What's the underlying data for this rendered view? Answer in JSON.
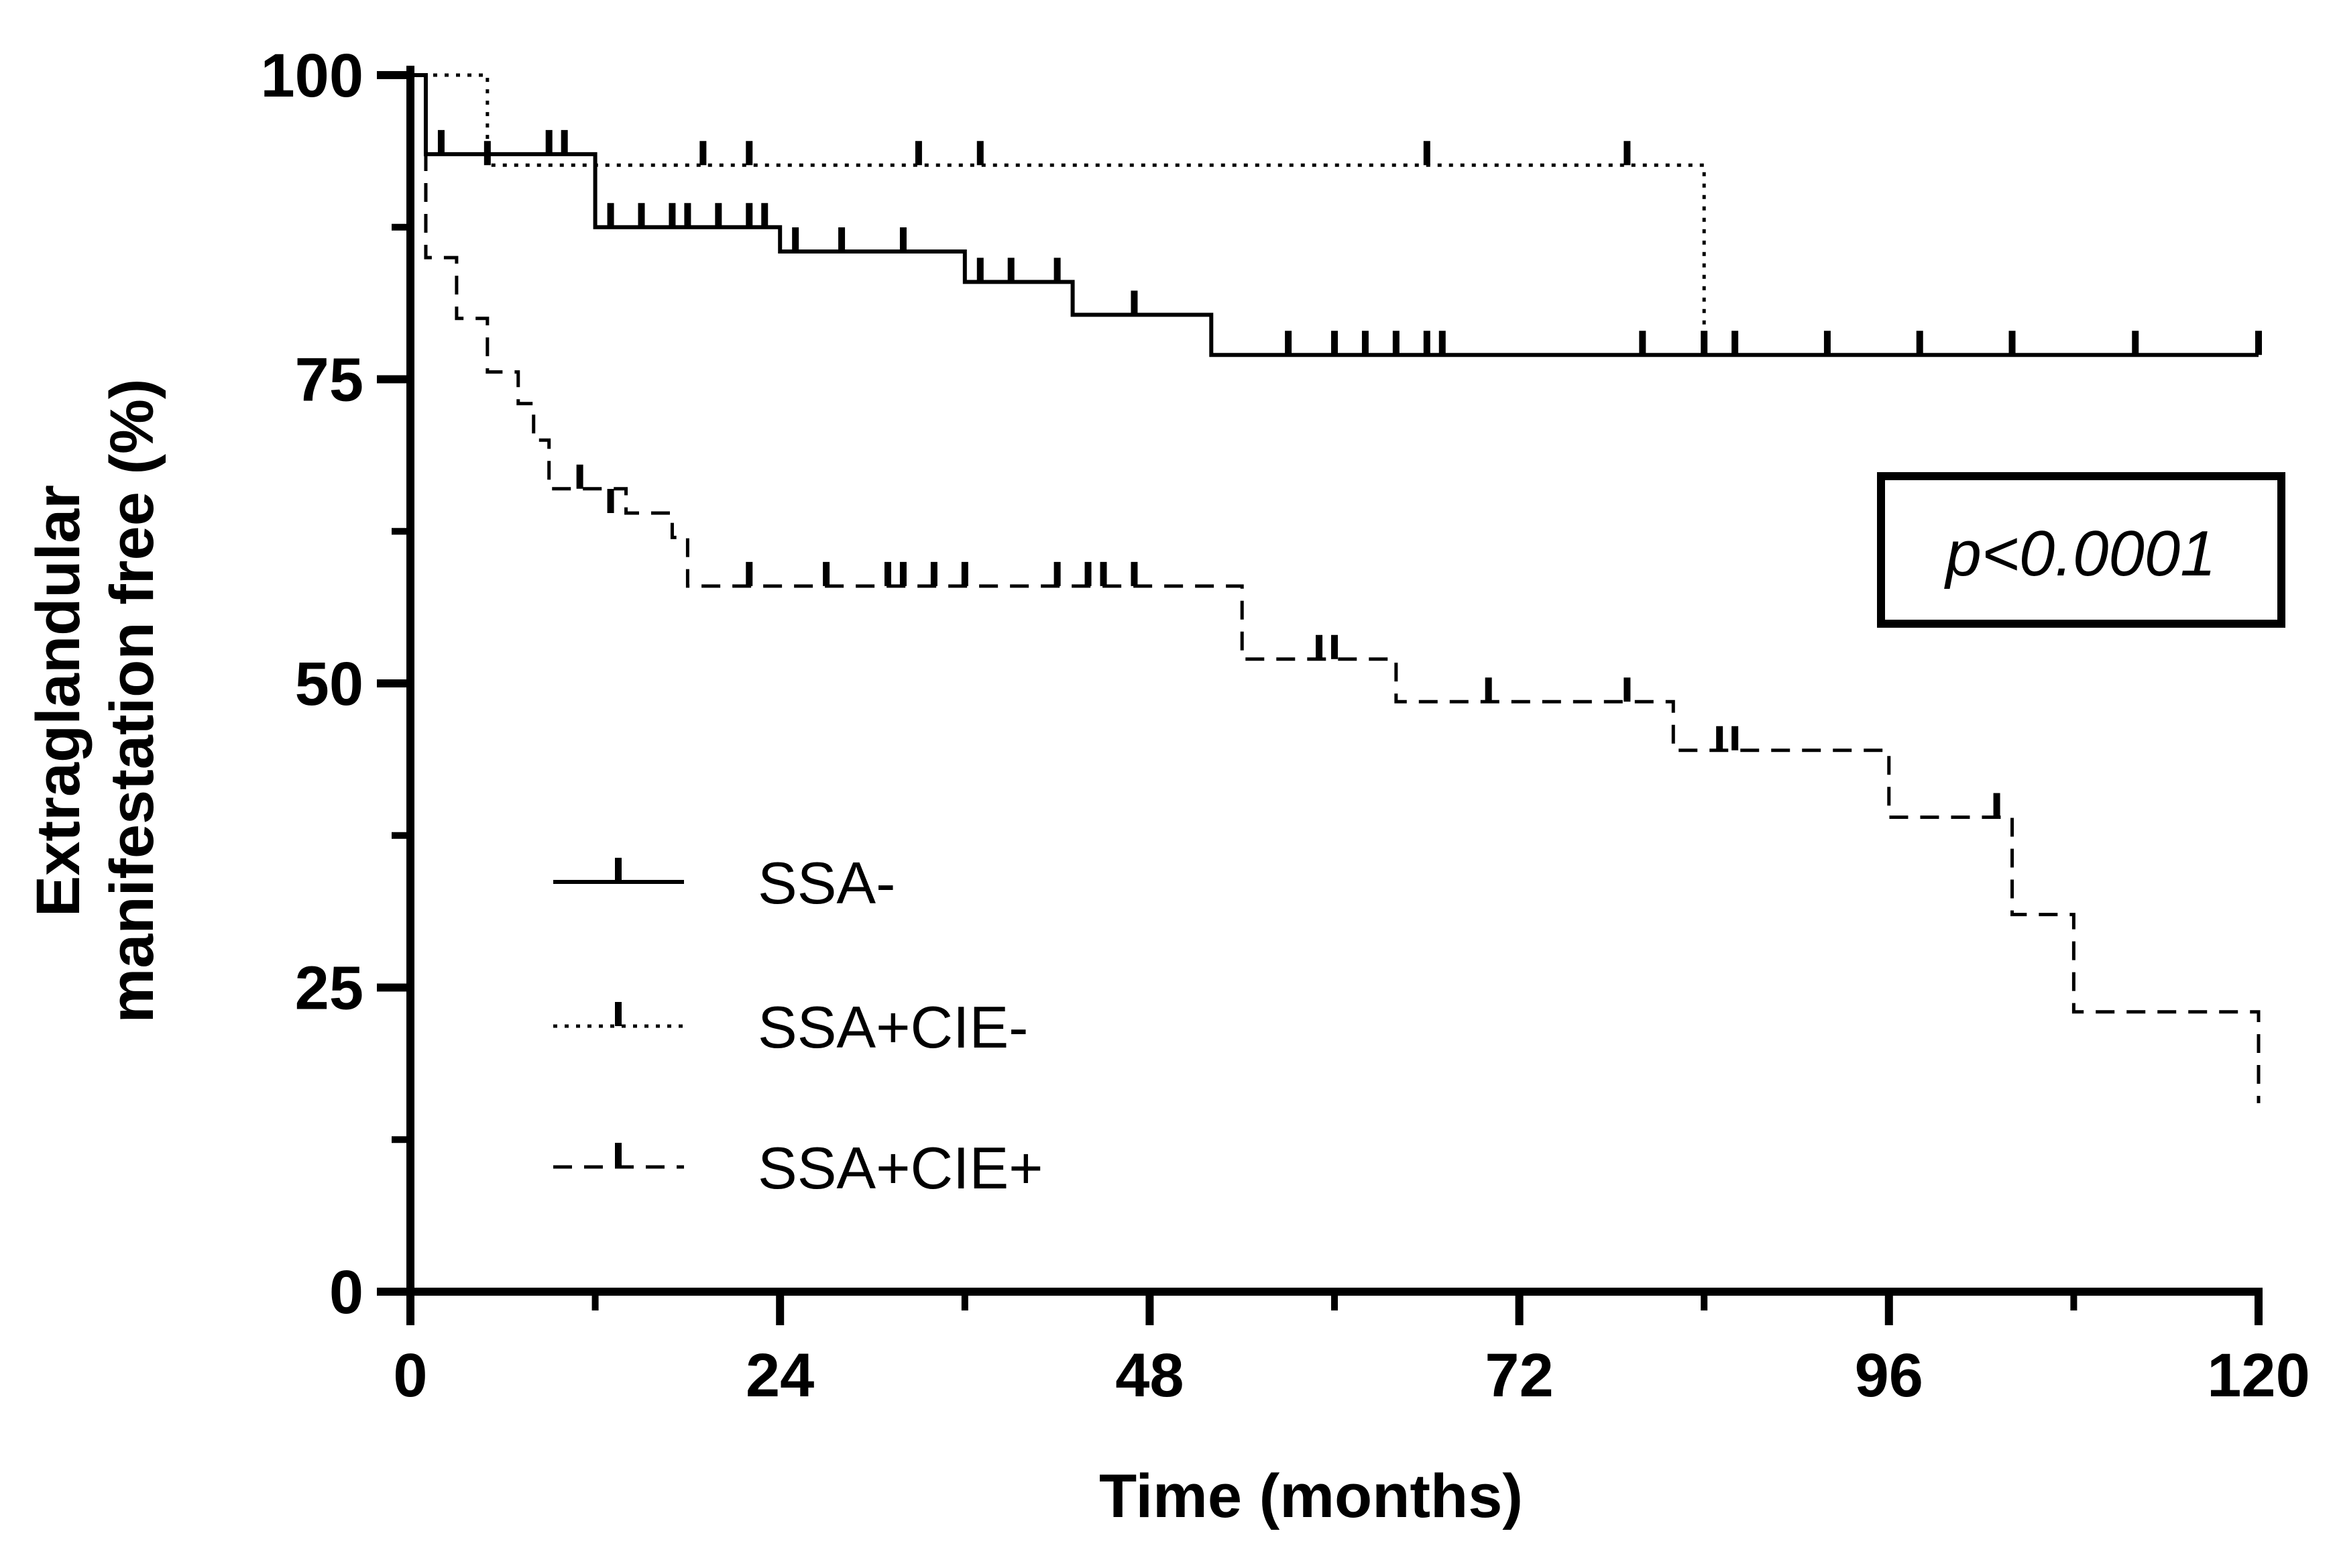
{
  "chart_data": {
    "type": "line",
    "subtype": "kaplan-meier survival",
    "title": "",
    "xlabel": "Time (months)",
    "ylabel_lines": [
      "Extraglandular",
      "manifestation free (%)"
    ],
    "xlim": [
      0,
      120
    ],
    "ylim": [
      0,
      100
    ],
    "xticks": [
      0,
      24,
      48,
      72,
      96,
      120
    ],
    "xtick_labels": [
      "0",
      "24",
      "48",
      "72",
      "96",
      "120"
    ],
    "yticks": [
      0,
      25,
      50,
      75,
      100
    ],
    "ytick_labels": [
      "0",
      "25",
      "50",
      "75",
      "100"
    ],
    "x_minor_ticks": [
      12,
      36,
      60,
      84,
      108
    ],
    "y_minor_ticks": [
      12.5,
      37.5,
      62.5,
      87.5
    ],
    "annotation": "p<0.0001",
    "series": [
      {
        "name": "SSA-",
        "style": "solid",
        "steps": [
          [
            0,
            100
          ],
          [
            1,
            93.5
          ],
          [
            12,
            87.5
          ],
          [
            24,
            85.5
          ],
          [
            36,
            83
          ],
          [
            43,
            80.3
          ],
          [
            52,
            77
          ],
          [
            120,
            77
          ]
        ],
        "censors": [
          [
            2,
            93.5
          ],
          [
            9,
            93.5
          ],
          [
            10,
            93.5
          ],
          [
            13,
            87.5
          ],
          [
            15,
            87.5
          ],
          [
            17,
            87.5
          ],
          [
            18,
            87.5
          ],
          [
            20,
            87.5
          ],
          [
            22,
            87.5
          ],
          [
            23,
            87.5
          ],
          [
            25,
            85.5
          ],
          [
            28,
            85.5
          ],
          [
            32,
            85.5
          ],
          [
            37,
            83
          ],
          [
            39,
            83
          ],
          [
            42,
            83
          ],
          [
            47,
            80.3
          ],
          [
            57,
            77
          ],
          [
            60,
            77
          ],
          [
            62,
            77
          ],
          [
            64,
            77
          ],
          [
            66,
            77
          ],
          [
            67,
            77
          ],
          [
            80,
            77
          ],
          [
            84,
            77
          ],
          [
            86,
            77
          ],
          [
            92,
            77
          ],
          [
            98,
            77
          ],
          [
            104,
            77
          ],
          [
            112,
            77
          ],
          [
            120,
            77
          ]
        ]
      },
      {
        "name": "SSA+CIE-",
        "style": "dotted",
        "steps": [
          [
            0,
            100
          ],
          [
            5,
            92.6
          ],
          [
            84,
            77
          ],
          [
            120,
            77
          ]
        ],
        "censors": [
          [
            5,
            92.6
          ],
          [
            19,
            92.6
          ],
          [
            22,
            92.6
          ],
          [
            33,
            92.6
          ],
          [
            37,
            92.6
          ],
          [
            66,
            92.6
          ],
          [
            79,
            92.6
          ]
        ]
      },
      {
        "name": "SSA+CIE+",
        "style": "dashed",
        "steps": [
          [
            0,
            100
          ],
          [
            1,
            85
          ],
          [
            3,
            80
          ],
          [
            5,
            75.6
          ],
          [
            7,
            73
          ],
          [
            8,
            70
          ],
          [
            9,
            66
          ],
          [
            14,
            64
          ],
          [
            17,
            62
          ],
          [
            18,
            58
          ],
          [
            54,
            52
          ],
          [
            64,
            48.5
          ],
          [
            82,
            44.5
          ],
          [
            96,
            39
          ],
          [
            104,
            31
          ],
          [
            108,
            23
          ],
          [
            120,
            15.5
          ]
        ],
        "censors": [
          [
            11,
            66
          ],
          [
            13,
            64
          ],
          [
            22,
            58
          ],
          [
            27,
            58
          ],
          [
            31,
            58
          ],
          [
            32,
            58
          ],
          [
            34,
            58
          ],
          [
            36,
            58
          ],
          [
            42,
            58
          ],
          [
            44,
            58
          ],
          [
            45,
            58
          ],
          [
            47,
            58
          ],
          [
            59,
            52
          ],
          [
            60,
            52
          ],
          [
            70,
            48.5
          ],
          [
            79,
            48.5
          ],
          [
            85,
            44.5
          ],
          [
            86,
            44.5
          ],
          [
            103,
            39
          ]
        ]
      }
    ],
    "legend": [
      {
        "label": "SSA-",
        "style": "solid"
      },
      {
        "label": "SSA+CIE-",
        "style": "dotted"
      },
      {
        "label": "SSA+CIE+",
        "style": "dashed"
      }
    ]
  }
}
